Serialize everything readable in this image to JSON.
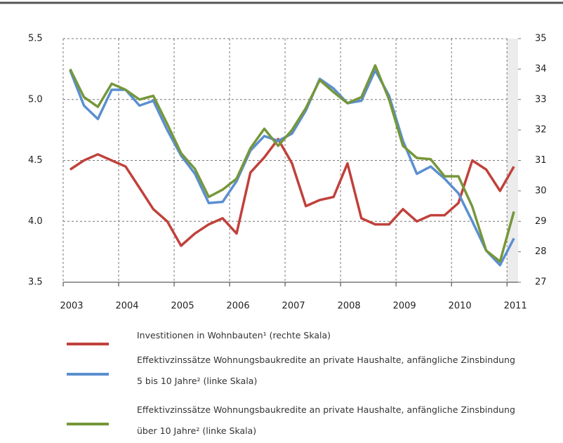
{
  "chart_data": {
    "type": "line",
    "x": [
      2003.125,
      2003.375,
      2003.625,
      2003.875,
      2004.125,
      2004.375,
      2004.625,
      2004.875,
      2005.125,
      2005.375,
      2005.625,
      2005.875,
      2006.125,
      2006.375,
      2006.625,
      2006.875,
      2007.125,
      2007.375,
      2007.625,
      2007.875,
      2008.125,
      2008.375,
      2008.625,
      2008.875,
      2009.125,
      2009.375,
      2009.625,
      2009.875,
      2010.125,
      2010.375,
      2010.625,
      2010.875,
      2011.125
    ],
    "xlim": [
      2003,
      2011.2
    ],
    "xticks": [
      2003,
      2004,
      2005,
      2006,
      2007,
      2008,
      2009,
      2010,
      2011
    ],
    "ylim": [
      3.5,
      5.5
    ],
    "yticks": [
      3.5,
      {
        "value": 4,
        "label": "4.0"
      },
      4.5,
      {
        "value": 5,
        "label": "5.0"
      },
      5.5
    ],
    "y2lim": [
      27,
      35
    ],
    "y2ticks": [
      27,
      28,
      29,
      30,
      31,
      32,
      33,
      34,
      35
    ],
    "grid": true,
    "series": [
      {
        "name": "Investitionen in Wohnbauten¹ (rechte Skala)",
        "color": "#c0413b",
        "axis": "y2",
        "values": [
          30.7,
          31.0,
          31.2,
          31.0,
          30.8,
          30.1,
          29.4,
          29.0,
          28.2,
          28.6,
          28.9,
          29.1,
          28.6,
          30.6,
          31.1,
          31.7,
          30.9,
          29.5,
          29.7,
          29.8,
          30.9,
          29.1,
          28.9,
          28.9,
          29.4,
          29.0,
          29.2,
          29.2,
          29.6,
          31.0,
          30.7,
          30.0,
          30.8
        ]
      },
      {
        "name": "Effektivzinssätze Wohnungsbaukredite an private Haushalte, anfängliche Zinsbindung 5 bis 10 Jahre² (linke Skala)",
        "color": "#5b8fd0",
        "values": [
          5.24,
          4.95,
          4.84,
          5.08,
          5.08,
          4.95,
          4.99,
          4.75,
          4.54,
          4.39,
          4.15,
          4.16,
          4.33,
          4.58,
          4.7,
          4.66,
          4.72,
          4.91,
          5.17,
          5.09,
          4.97,
          4.99,
          5.24,
          5.03,
          4.66,
          4.39,
          4.45,
          4.35,
          4.23,
          4.0,
          3.76,
          3.64,
          3.86
        ]
      },
      {
        "name": "Effektivzinssätze Wohnungsbaukredite an private Haushalte, anfängliche Zinsbindung über 10 Jahre² (linke Skala)",
        "color": "#76973a",
        "values": [
          5.25,
          5.02,
          4.94,
          5.13,
          5.08,
          5.0,
          5.03,
          4.8,
          4.56,
          4.43,
          4.2,
          4.26,
          4.35,
          4.6,
          4.76,
          4.62,
          4.75,
          4.93,
          5.16,
          5.06,
          4.97,
          5.02,
          5.28,
          5.0,
          4.62,
          4.52,
          4.51,
          4.37,
          4.37,
          4.12,
          3.76,
          3.67,
          4.08
        ]
      }
    ]
  }
}
